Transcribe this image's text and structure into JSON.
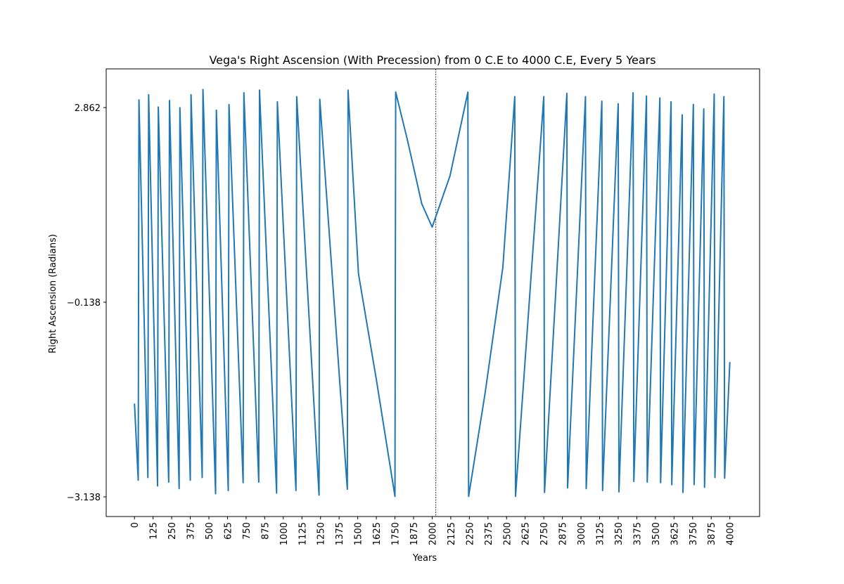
{
  "chart_data": {
    "type": "line",
    "title": "Vega's Right Ascension (With Precession) from 0 C.E to 4000 C.E, Every 5 Years",
    "xlabel": "Years",
    "ylabel": "Right Ascension (Radians)",
    "x": [
      0,
      25,
      30,
      90,
      95,
      155,
      160,
      230,
      235,
      300,
      305,
      375,
      380,
      455,
      460,
      545,
      550,
      630,
      635,
      730,
      735,
      835,
      840,
      955,
      960,
      1085,
      1090,
      1240,
      1245,
      1430,
      1435,
      1505,
      1625,
      1750,
      1755,
      1835,
      1930,
      2000,
      2120,
      2240,
      2245,
      2355,
      2475,
      2555,
      2560,
      2750,
      2755,
      2905,
      2910,
      3030,
      3035,
      3140,
      3145,
      3250,
      3255,
      3350,
      3355,
      3440,
      3445,
      3530,
      3535,
      3605,
      3610,
      3680,
      3685,
      3755,
      3760,
      3825,
      3830,
      3895,
      3900,
      3960,
      3965,
      4000
    ],
    "series": [
      {
        "name": "Right Ascension",
        "color": "#1f77b4",
        "values": [
          -1.7,
          -2.88,
          2.98,
          -2.84,
          3.06,
          -2.97,
          2.87,
          -2.91,
          2.97,
          -3.01,
          2.86,
          -2.88,
          3.06,
          -2.84,
          3.14,
          -3.09,
          2.82,
          -3.04,
          2.91,
          -2.92,
          3.09,
          -2.91,
          3.13,
          -3.08,
          2.95,
          -3.04,
          3.03,
          -3.11,
          2.99,
          -3.02,
          3.13,
          0.3,
          -1.33,
          -3.13,
          3.1,
          2.35,
          1.38,
          1.02,
          1.81,
          3.1,
          -3.13,
          -1.55,
          0.4,
          3.03,
          -3.13,
          3.03,
          -3.07,
          3.08,
          -3.0,
          3.03,
          -3.01,
          2.96,
          -3.04,
          2.92,
          -3.06,
          3.09,
          -2.9,
          3.04,
          -2.91,
          3.01,
          -2.92,
          2.95,
          -2.95,
          2.75,
          -3.07,
          2.91,
          -2.95,
          2.84,
          -2.99,
          3.07,
          -2.84,
          3.03,
          -2.85,
          -1.06
        ]
      }
    ],
    "vline": 2025,
    "xlim": [
      -190,
      4200
    ],
    "ylim": [
      -3.441,
      3.458
    ],
    "xticks": [
      0,
      125,
      250,
      375,
      500,
      625,
      750,
      875,
      1000,
      1125,
      1250,
      1375,
      1500,
      1625,
      1750,
      1875,
      2000,
      2125,
      2250,
      2375,
      2500,
      2625,
      2750,
      2875,
      3000,
      3125,
      3250,
      3375,
      3500,
      3625,
      3750,
      3875,
      4000
    ],
    "yticks": [
      {
        "value": -3.138,
        "label": "−3.138"
      },
      {
        "value": -0.138,
        "label": "−0.138"
      },
      2.862
    ]
  }
}
